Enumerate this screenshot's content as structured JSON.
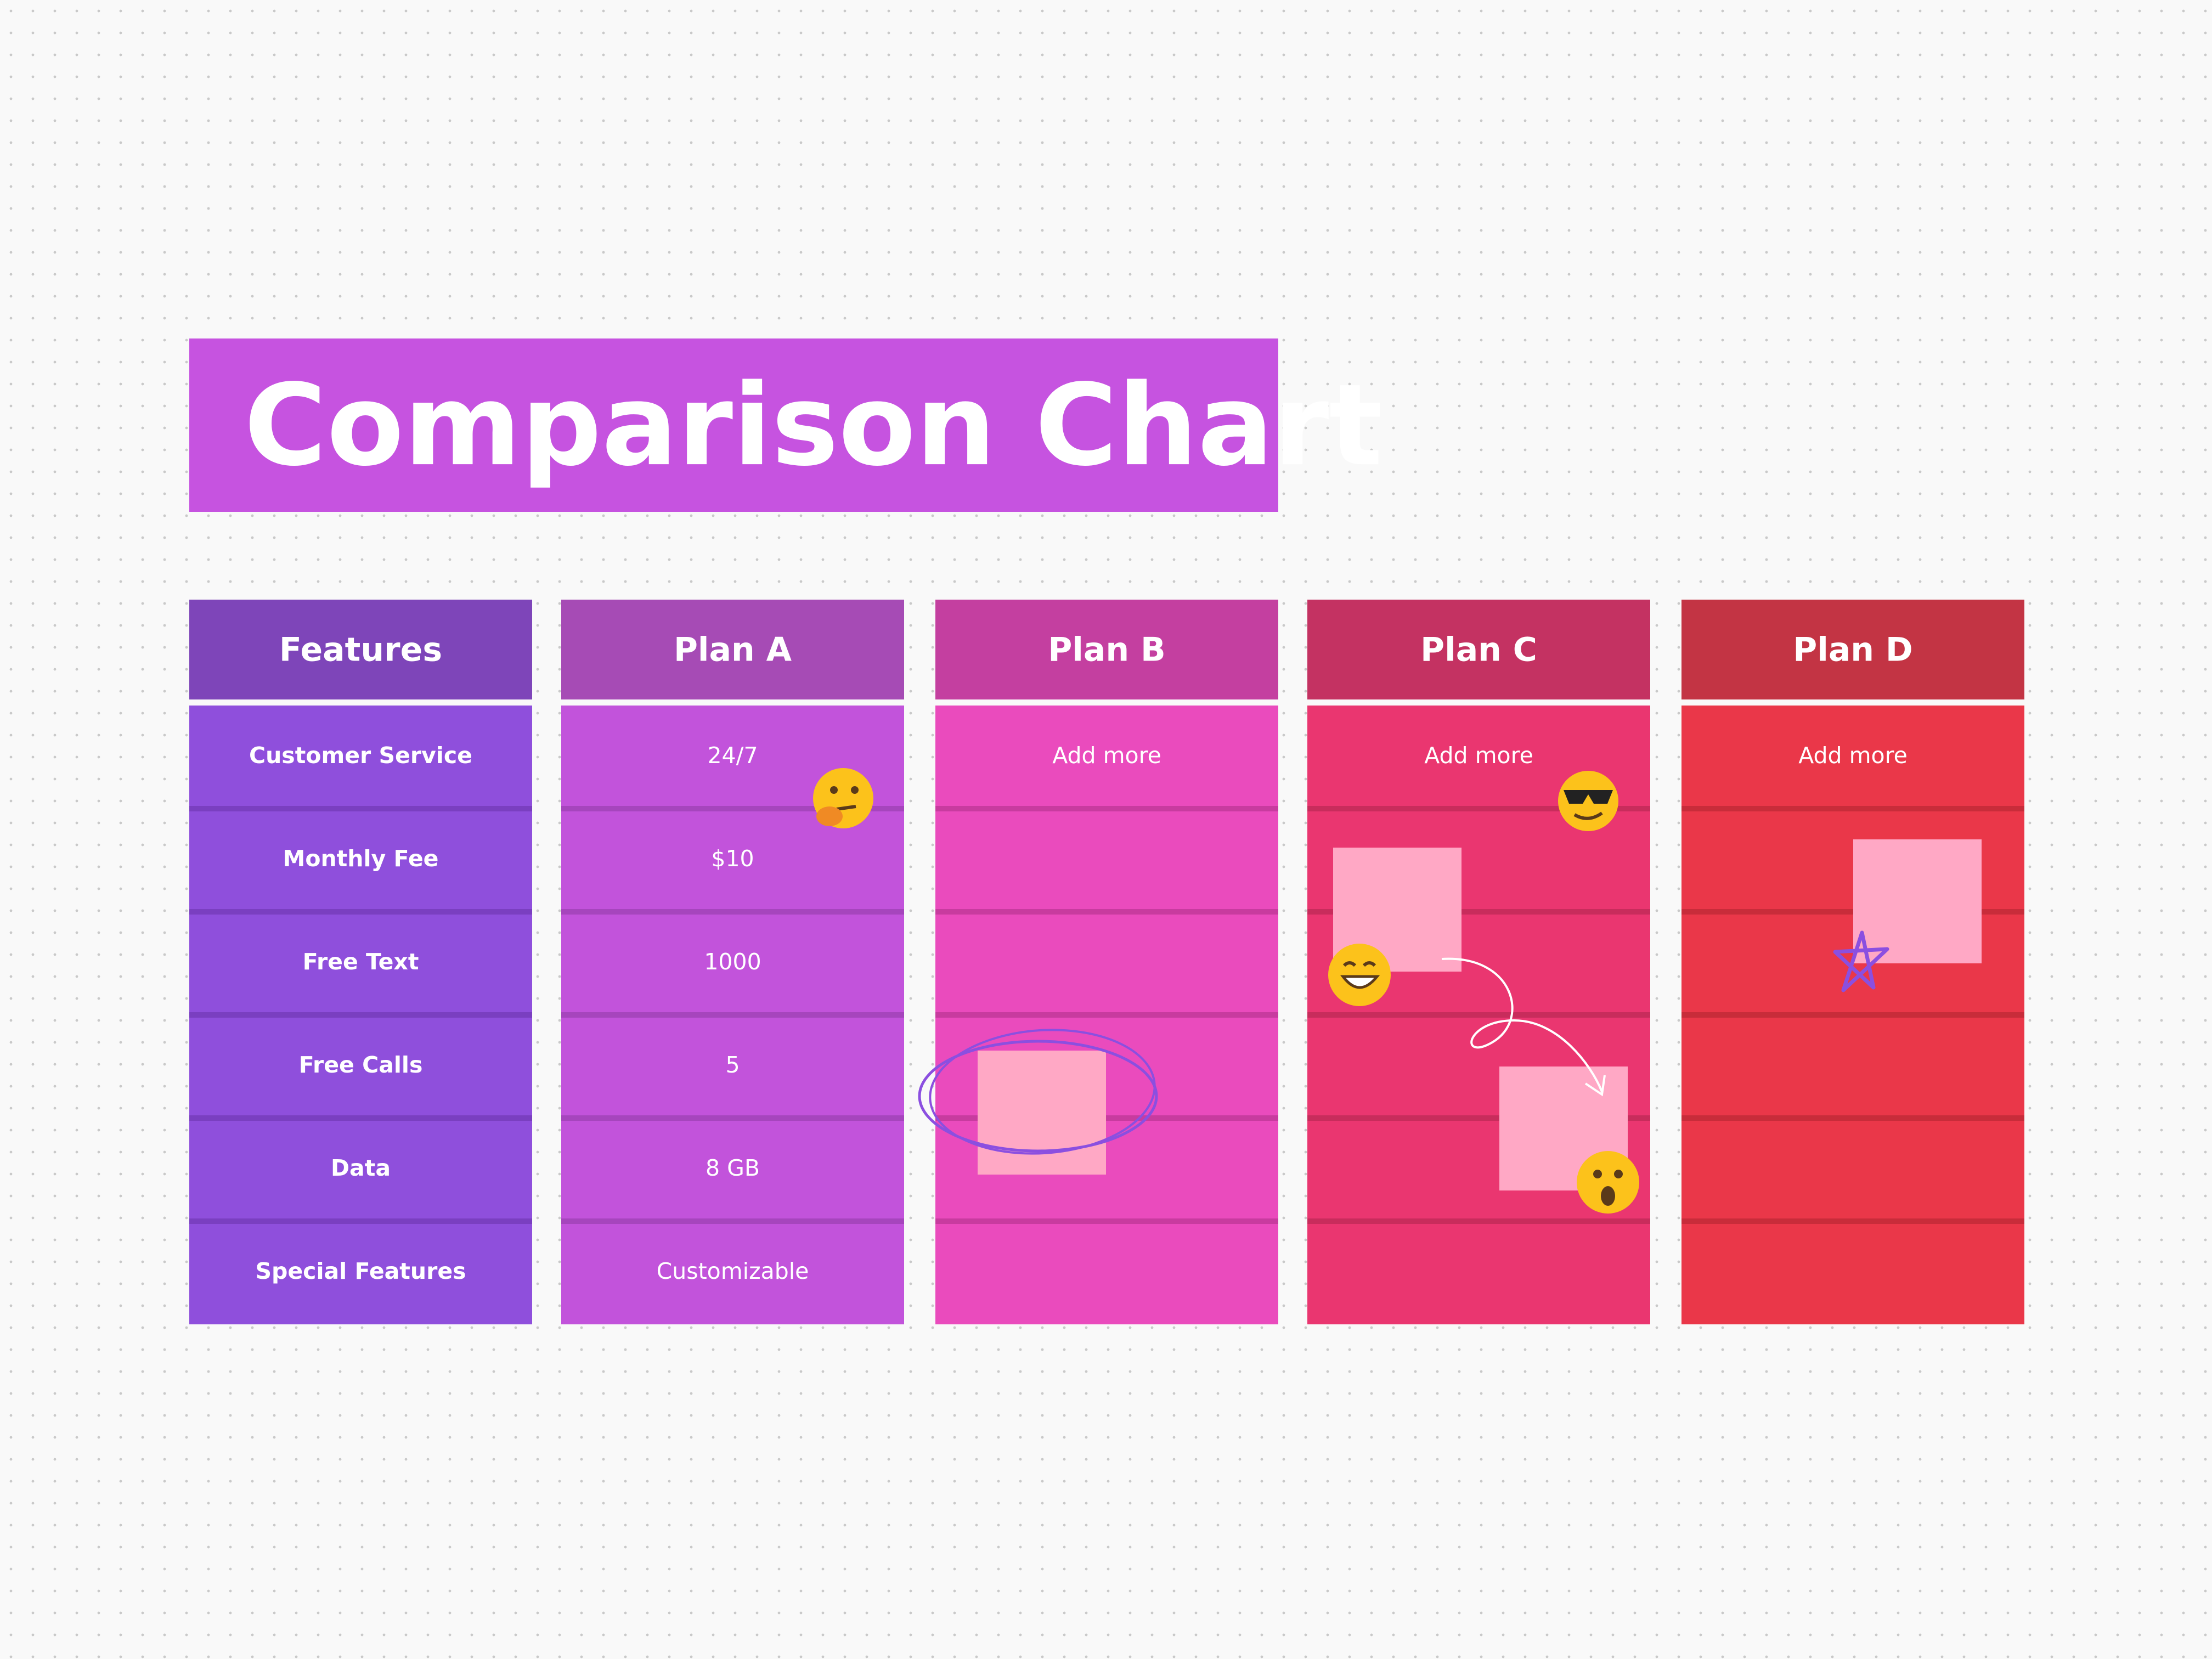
{
  "title": "Comparison Chart",
  "table": {
    "columns": [
      {
        "header": "Features",
        "cells": [
          "Customer Service",
          "Monthly Fee",
          "Free Text",
          "Free Calls",
          "Data",
          "Special Features"
        ]
      },
      {
        "header": "Plan A",
        "cells": [
          "24/7",
          "$10",
          "1000",
          "5",
          "8 GB",
          "Customizable"
        ]
      },
      {
        "header": "Plan B",
        "cells": [
          "Add more"
        ]
      },
      {
        "header": "Plan C",
        "cells": [
          "Add more"
        ]
      },
      {
        "header": "Plan D",
        "cells": [
          "Add more"
        ]
      }
    ]
  }
}
